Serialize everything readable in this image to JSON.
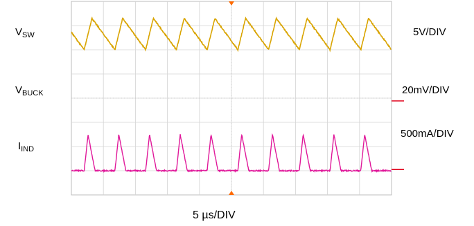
{
  "chart_data": {
    "type": "line",
    "title": "",
    "xlabel": "5 µs/DIV",
    "grid": true,
    "grid_divisions": {
      "x": 10,
      "y": 8
    },
    "time_per_div_us": 5,
    "period_us": 4.8,
    "series": [
      {
        "key": "vsw",
        "label_main": "V",
        "label_sub": "SW",
        "scale": "5V/DIV",
        "color": "#8a1fbf",
        "waveform": "switch-node pulses",
        "edge_times_us": [
          2.0,
          6.8,
          11.6,
          16.4,
          21.2,
          26.0,
          30.8,
          35.6,
          40.4,
          45.2
        ],
        "baseline_div": 5.0,
        "pulse_high_div": 5.72,
        "overshoot_div": 6.0,
        "undershoot_div": 4.85
      },
      {
        "key": "vbuck",
        "label_main": "V",
        "label_sub": "BUCK",
        "scale": "20mV/DIV",
        "color": "#d9a400",
        "waveform": "sawtooth ripple",
        "peak_div": 3.3,
        "trough_div": 2.0,
        "rise_us": 1.2
      },
      {
        "key": "iind",
        "label_main": "I",
        "label_sub": "IND",
        "scale": "500mA/DIV",
        "color": "#e0189a",
        "waveform": "discontinuous triangular pulses",
        "baseline_div": -0.05,
        "peak_div": 1.45,
        "rise_us": 0.6,
        "fall_us": 1.1
      }
    ]
  }
}
